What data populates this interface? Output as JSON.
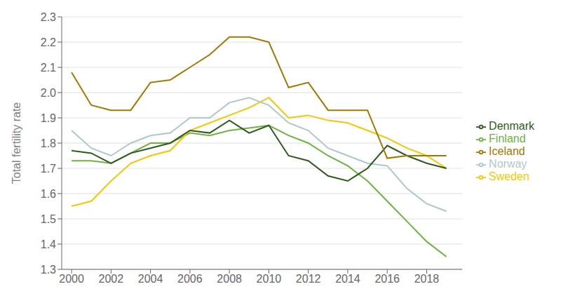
{
  "chart_data": {
    "type": "line",
    "x": [
      2000,
      2001,
      2002,
      2003,
      2004,
      2005,
      2006,
      2007,
      2008,
      2009,
      2010,
      2011,
      2012,
      2013,
      2014,
      2015,
      2016,
      2017,
      2018,
      2019
    ],
    "series": [
      {
        "name": "Finland",
        "color": "#6db33f",
        "values": [
          1.73,
          1.73,
          1.72,
          1.76,
          1.8,
          1.8,
          1.84,
          1.83,
          1.85,
          1.86,
          1.87,
          1.83,
          1.8,
          1.75,
          1.71,
          1.65,
          1.57,
          1.49,
          1.41,
          1.35
        ]
      },
      {
        "name": "Sweden",
        "color": "#f5c700",
        "values": [
          1.55,
          1.57,
          1.65,
          1.72,
          1.75,
          1.77,
          1.85,
          1.88,
          1.91,
          1.94,
          1.98,
          1.9,
          1.91,
          1.89,
          1.88,
          1.85,
          1.82,
          1.78,
          1.75,
          1.7
        ]
      },
      {
        "name": "Norway",
        "color": "#adc8c8",
        "values": [
          1.85,
          1.78,
          1.75,
          1.8,
          1.83,
          1.84,
          1.9,
          1.9,
          1.96,
          1.98,
          1.95,
          1.88,
          1.85,
          1.78,
          1.75,
          1.72,
          1.71,
          1.62,
          1.56,
          1.53
        ]
      },
      {
        "name": "Denmark",
        "color": "#2d5a1b",
        "values": [
          1.77,
          1.76,
          1.72,
          1.76,
          1.78,
          1.8,
          1.85,
          1.84,
          1.89,
          1.84,
          1.87,
          1.75,
          1.73,
          1.67,
          1.65,
          1.7,
          1.79,
          1.75,
          1.72,
          1.7
        ]
      },
      {
        "name": "Iceland",
        "color": "#a07800",
        "values": [
          2.08,
          1.95,
          1.93,
          1.93,
          2.04,
          2.05,
          2.1,
          2.15,
          2.22,
          2.22,
          2.2,
          2.02,
          2.04,
          1.93,
          1.93,
          1.93,
          1.74,
          1.75,
          1.75,
          1.75
        ]
      }
    ],
    "ylabel": "Total fertility rate",
    "xlim": [
      1999.5,
      2019.8
    ],
    "xticks": [
      2000,
      2002,
      2004,
      2006,
      2008,
      2010,
      2012,
      2014,
      2016,
      2018
    ],
    "ylim": [
      1.3,
      2.3
    ],
    "yticks": [
      1.3,
      1.4,
      1.5,
      1.6,
      1.7,
      1.8,
      1.9,
      {
        "value": 2.0,
        "label": "2.0"
      },
      2.1,
      2.2,
      2.3
    ],
    "grid": true,
    "legend": "right"
  }
}
